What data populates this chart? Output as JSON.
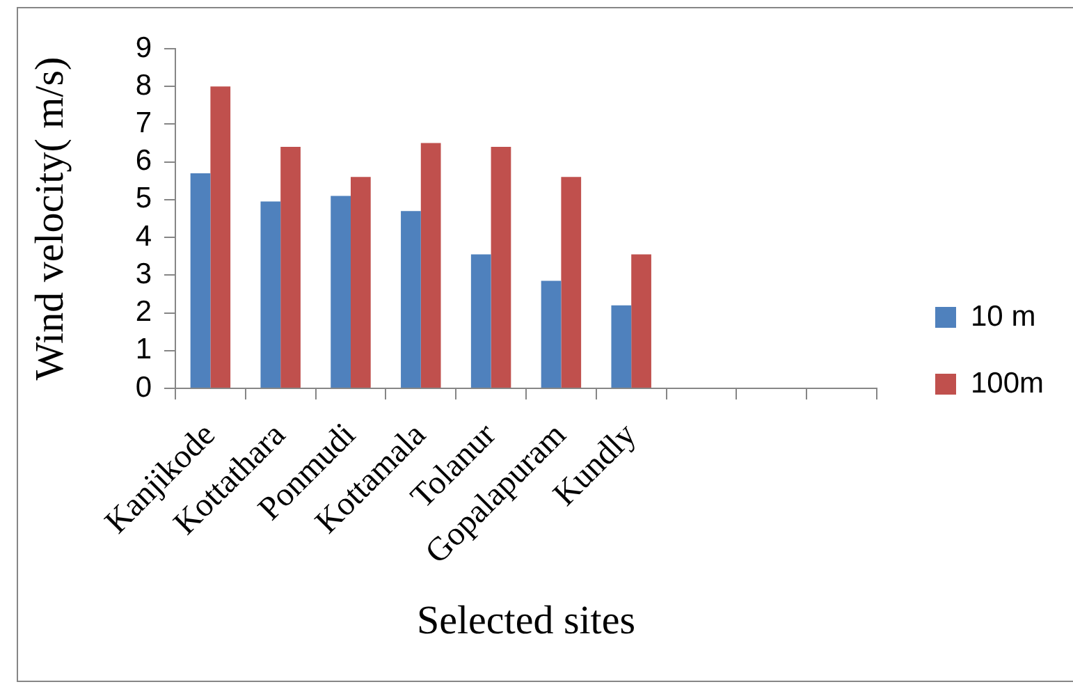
{
  "chart_data": {
    "type": "bar",
    "xlabel": "Selected sites",
    "ylabel": "Wind velocity( m/s)",
    "categories": [
      "Kanjikode",
      "Kottathara",
      "Ponmudi",
      "Kottamala",
      "Tolanur",
      "Gopalapuram",
      "Kundly",
      null,
      null,
      null
    ],
    "series": [
      {
        "name": "10 m",
        "color": "#4f81bd",
        "values": [
          5.7,
          4.95,
          5.1,
          4.7,
          3.55,
          2.85,
          2.2,
          null,
          null,
          null
        ]
      },
      {
        "name": "100m",
        "color": "#c0504d",
        "values": [
          8.0,
          6.4,
          5.6,
          6.5,
          6.4,
          5.6,
          3.55,
          null,
          null,
          null
        ]
      }
    ],
    "ylim": [
      0,
      9
    ],
    "yticks": [
      0,
      1,
      2,
      3,
      4,
      5,
      6,
      7,
      8,
      9
    ],
    "grid": false,
    "legend": "right"
  }
}
